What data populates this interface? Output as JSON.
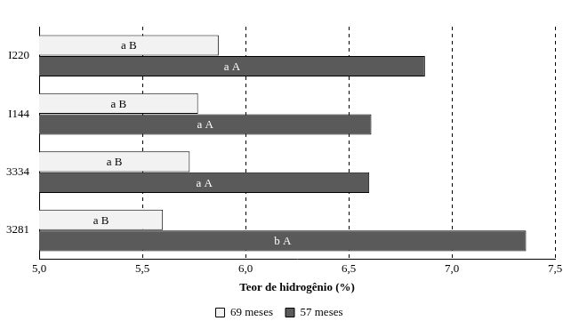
{
  "chart_data": {
    "type": "bar",
    "orientation": "horizontal",
    "x_label": "Teor de hidrogênio (%)",
    "categories": [
      "I220",
      "I144",
      "3334",
      "3281"
    ],
    "series": [
      {
        "name": "69 meses",
        "color": "#f2f2f2",
        "values": [
          5.87,
          5.77,
          5.73,
          5.6
        ],
        "annotations": [
          "a B",
          "a B",
          "a B",
          "a B"
        ]
      },
      {
        "name": "57 meses",
        "color": "#5a5a5a",
        "values": [
          6.87,
          6.61,
          6.6,
          7.36
        ],
        "annotations": [
          "a A",
          "a A",
          "a A",
          "b A"
        ]
      }
    ],
    "xlim": [
      5.0,
      7.5
    ],
    "xticks": [
      {
        "value": 5.0,
        "label": "5,0"
      },
      {
        "value": 5.5,
        "label": "5,5"
      },
      {
        "value": 6.0,
        "label": "6,0"
      },
      {
        "value": 6.5,
        "label": "6,5"
      },
      {
        "value": 7.0,
        "label": "7,0"
      },
      {
        "value": 7.5,
        "label": "7,5"
      }
    ],
    "grid": true,
    "legend": "bottom"
  }
}
